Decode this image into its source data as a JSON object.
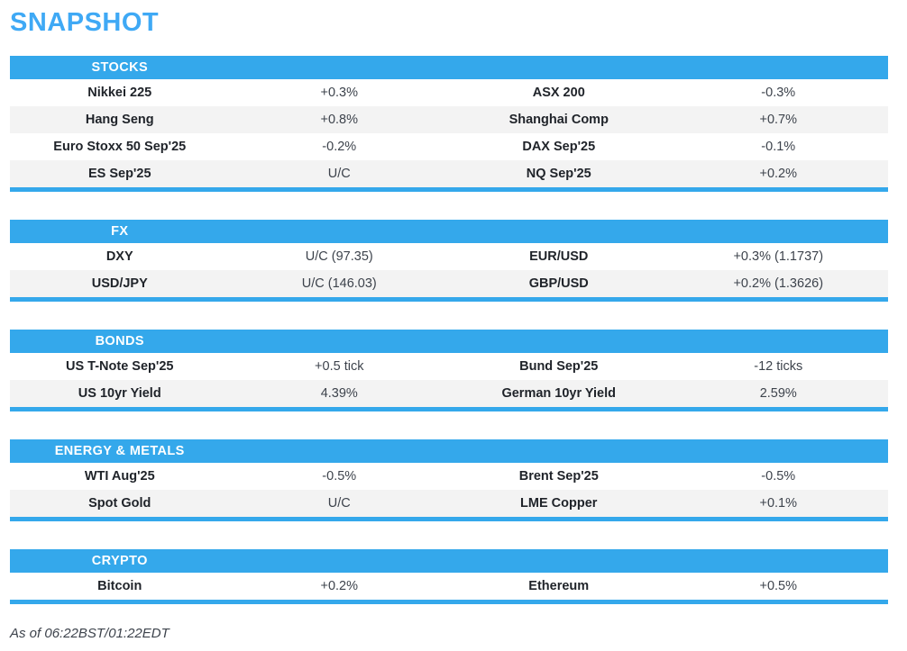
{
  "page": {
    "title": "SNAPSHOT",
    "footer": "As of 06:22BST/01:22EDT"
  },
  "colors": {
    "section_bar_blue": "#34a8eb",
    "title_blue": "#3fa9f5",
    "row_stripe_gray": "#f3f3f3",
    "name_text": "#1f2329",
    "value_text": "#3d434c"
  },
  "sections": [
    {
      "label": "STOCKS",
      "rows": [
        {
          "name_left": "Nikkei 225",
          "value_left": "+0.3%",
          "name_right": "ASX 200",
          "value_right": "-0.3%"
        },
        {
          "name_left": "Hang Seng",
          "value_left": "+0.8%",
          "name_right": "Shanghai Comp",
          "value_right": "+0.7%"
        },
        {
          "name_left": "Euro Stoxx 50 Sep'25",
          "value_left": "-0.2%",
          "name_right": "DAX Sep'25",
          "value_right": "-0.1%"
        },
        {
          "name_left": "ES Sep'25",
          "value_left": "U/C",
          "name_right": "NQ Sep'25",
          "value_right": "+0.2%"
        }
      ]
    },
    {
      "label": "FX",
      "rows": [
        {
          "name_left": "DXY",
          "value_left": "U/C (97.35)",
          "name_right": "EUR/USD",
          "value_right": "+0.3% (1.1737)"
        },
        {
          "name_left": "USD/JPY",
          "value_left": "U/C (146.03)",
          "name_right": "GBP/USD",
          "value_right": "+0.2% (1.3626)"
        }
      ]
    },
    {
      "label": "BONDS",
      "rows": [
        {
          "name_left": "US T-Note Sep'25",
          "value_left": "+0.5 tick",
          "name_right": "Bund Sep'25",
          "value_right": "-12 ticks"
        },
        {
          "name_left": "US 10yr Yield",
          "value_left": "4.39%",
          "name_right": "German 10yr Yield",
          "value_right": "2.59%"
        }
      ]
    },
    {
      "label": "ENERGY & METALS",
      "rows": [
        {
          "name_left": "WTI Aug'25",
          "value_left": "-0.5%",
          "name_right": "Brent Sep'25",
          "value_right": "-0.5%"
        },
        {
          "name_left": "Spot Gold",
          "value_left": "U/C",
          "name_right": "LME Copper",
          "value_right": "+0.1%"
        }
      ]
    },
    {
      "label": "CRYPTO",
      "rows": [
        {
          "name_left": "Bitcoin",
          "value_left": "+0.2%",
          "name_right": "Ethereum",
          "value_right": "+0.5%"
        }
      ]
    }
  ]
}
